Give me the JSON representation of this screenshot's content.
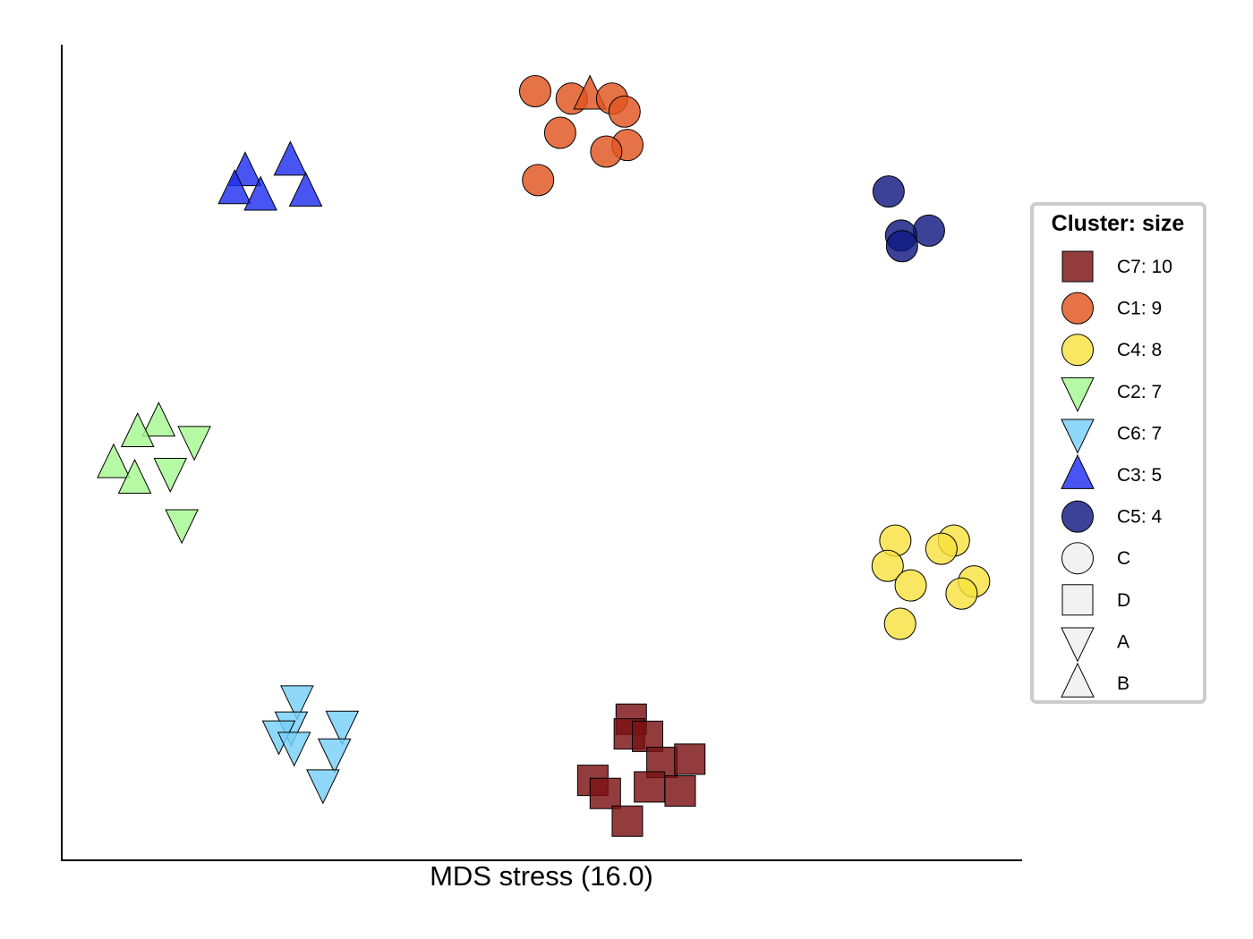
{
  "chart_data": {
    "type": "scatter",
    "title": "",
    "xlabel": "MDS stress (16.0)",
    "ylabel": "",
    "xlim": [
      0,
      100
    ],
    "ylim": [
      0,
      100
    ],
    "grid": false,
    "legend": {
      "title": "Cluster: size",
      "placement": "right",
      "cluster_entries": [
        {
          "label": "C7: 10",
          "marker": "square",
          "color": "#7b1113"
        },
        {
          "label": "C1: 9",
          "marker": "circle",
          "color": "#e15420"
        },
        {
          "label": "C4: 8",
          "marker": "circle",
          "color": "#f8e040"
        },
        {
          "label": "C2: 7",
          "marker": "triangle-down",
          "color": "#a6f890"
        },
        {
          "label": "C6: 7",
          "marker": "triangle-down",
          "color": "#78d0f8"
        },
        {
          "label": "C3: 5",
          "marker": "triangle-up",
          "color": "#2030f0"
        },
        {
          "label": "C5: 4",
          "marker": "circle",
          "color": "#101880"
        }
      ],
      "marker_entries": [
        {
          "label": "C",
          "marker": "circle"
        },
        {
          "label": "D",
          "marker": "square"
        },
        {
          "label": "A",
          "marker": "triangle-down"
        },
        {
          "label": "B",
          "marker": "triangle-up"
        }
      ]
    },
    "series": [
      {
        "cluster": "C7",
        "color": "#7b1113",
        "points": [
          {
            "x": 59.3,
            "y": 17.3,
            "marker": "square"
          },
          {
            "x": 59.1,
            "y": 15.5,
            "marker": "square"
          },
          {
            "x": 61.0,
            "y": 15.2,
            "marker": "square"
          },
          {
            "x": 62.5,
            "y": 12.0,
            "marker": "square"
          },
          {
            "x": 65.4,
            "y": 12.4,
            "marker": "square"
          },
          {
            "x": 55.3,
            "y": 9.8,
            "marker": "square"
          },
          {
            "x": 56.6,
            "y": 8.2,
            "marker": "square"
          },
          {
            "x": 61.2,
            "y": 9.0,
            "marker": "square"
          },
          {
            "x": 64.4,
            "y": 8.5,
            "marker": "square"
          },
          {
            "x": 58.9,
            "y": 4.8,
            "marker": "square"
          }
        ]
      },
      {
        "cluster": "C1",
        "color": "#e15420",
        "points": [
          {
            "x": 49.3,
            "y": 94.3,
            "marker": "circle"
          },
          {
            "x": 53.1,
            "y": 93.4,
            "marker": "circle"
          },
          {
            "x": 55.0,
            "y": 93.8,
            "marker": "triangle-up"
          },
          {
            "x": 57.3,
            "y": 93.4,
            "marker": "circle"
          },
          {
            "x": 58.6,
            "y": 91.8,
            "marker": "circle"
          },
          {
            "x": 51.9,
            "y": 89.2,
            "marker": "circle"
          },
          {
            "x": 58.9,
            "y": 87.7,
            "marker": "circle"
          },
          {
            "x": 56.7,
            "y": 86.9,
            "marker": "circle"
          },
          {
            "x": 49.6,
            "y": 83.4,
            "marker": "circle"
          }
        ]
      },
      {
        "cluster": "C4",
        "color": "#f8e040",
        "points": [
          {
            "x": 86.8,
            "y": 39.2,
            "marker": "circle"
          },
          {
            "x": 92.9,
            "y": 39.2,
            "marker": "circle"
          },
          {
            "x": 91.6,
            "y": 38.2,
            "marker": "circle"
          },
          {
            "x": 86.0,
            "y": 36.1,
            "marker": "circle"
          },
          {
            "x": 88.4,
            "y": 33.7,
            "marker": "circle"
          },
          {
            "x": 95.0,
            "y": 34.2,
            "marker": "circle"
          },
          {
            "x": 93.7,
            "y": 32.7,
            "marker": "circle"
          },
          {
            "x": 87.3,
            "y": 29.0,
            "marker": "circle"
          }
        ]
      },
      {
        "cluster": "C2",
        "color": "#a6f890",
        "points": [
          {
            "x": 10.1,
            "y": 53.7,
            "marker": "triangle-up"
          },
          {
            "x": 7.9,
            "y": 52.4,
            "marker": "triangle-up"
          },
          {
            "x": 13.8,
            "y": 51.5,
            "marker": "triangle-down"
          },
          {
            "x": 5.4,
            "y": 48.6,
            "marker": "triangle-up"
          },
          {
            "x": 11.3,
            "y": 47.6,
            "marker": "triangle-down"
          },
          {
            "x": 7.6,
            "y": 46.7,
            "marker": "triangle-up"
          },
          {
            "x": 12.5,
            "y": 41.3,
            "marker": "triangle-down"
          }
        ]
      },
      {
        "cluster": "C6",
        "color": "#78d0f8",
        "points": [
          {
            "x": 24.5,
            "y": 19.7,
            "marker": "triangle-down"
          },
          {
            "x": 23.9,
            "y": 16.5,
            "marker": "triangle-down"
          },
          {
            "x": 29.2,
            "y": 16.6,
            "marker": "triangle-down"
          },
          {
            "x": 22.6,
            "y": 15.4,
            "marker": "triangle-down"
          },
          {
            "x": 24.2,
            "y": 14.0,
            "marker": "triangle-down"
          },
          {
            "x": 28.4,
            "y": 13.2,
            "marker": "triangle-down"
          },
          {
            "x": 27.2,
            "y": 9.4,
            "marker": "triangle-down"
          }
        ]
      },
      {
        "cluster": "C3",
        "color": "#2030f0",
        "points": [
          {
            "x": 23.8,
            "y": 85.7,
            "marker": "triangle-up"
          },
          {
            "x": 19.1,
            "y": 84.4,
            "marker": "triangle-up"
          },
          {
            "x": 18.0,
            "y": 82.2,
            "marker": "triangle-up"
          },
          {
            "x": 25.4,
            "y": 81.9,
            "marker": "triangle-up"
          },
          {
            "x": 20.7,
            "y": 81.4,
            "marker": "triangle-up"
          }
        ]
      },
      {
        "cluster": "C5",
        "color": "#101880",
        "points": [
          {
            "x": 86.1,
            "y": 82.0,
            "marker": "circle"
          },
          {
            "x": 90.3,
            "y": 77.2,
            "marker": "circle"
          },
          {
            "x": 87.4,
            "y": 76.6,
            "marker": "circle"
          },
          {
            "x": 87.5,
            "y": 75.3,
            "marker": "circle"
          }
        ]
      }
    ]
  }
}
